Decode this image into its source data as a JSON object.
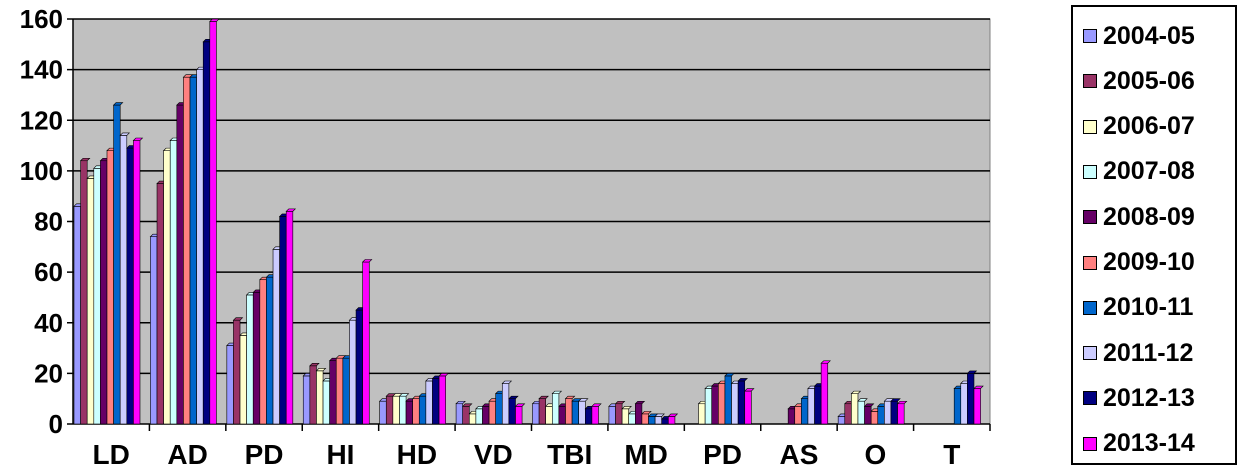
{
  "chart_data": {
    "type": "bar",
    "categories": [
      "LD",
      "AD",
      "PD",
      "HI",
      "HD",
      "VD",
      "TBI",
      "MD",
      "PD",
      "AS",
      "O",
      "T"
    ],
    "ylim": [
      0,
      160
    ],
    "y_ticks": [
      "0",
      "20",
      "40",
      "60",
      "80",
      "100",
      "120",
      "140",
      "160"
    ],
    "grid": true,
    "legend_position": "right",
    "series": [
      {
        "name": "2004-05",
        "color": "#9999ff",
        "values": [
          86,
          74,
          31,
          19,
          9,
          8,
          8,
          7,
          0,
          0,
          3,
          0
        ]
      },
      {
        "name": "2005-06",
        "color": "#993366",
        "values": [
          104,
          95,
          41,
          23,
          11,
          7,
          10,
          8,
          0,
          0,
          8,
          0
        ]
      },
      {
        "name": "2006-07",
        "color": "#ffffcc",
        "values": [
          97,
          108,
          35,
          21,
          11,
          4,
          7,
          6,
          8,
          0,
          12,
          0
        ]
      },
      {
        "name": "2007-08",
        "color": "#ccffff",
        "values": [
          101,
          112,
          51,
          17,
          11,
          6,
          12,
          4,
          14,
          0,
          9,
          0
        ]
      },
      {
        "name": "2008-09",
        "color": "#660066",
        "values": [
          104,
          126,
          52,
          25,
          9,
          7,
          7,
          8,
          15,
          6,
          7,
          0
        ]
      },
      {
        "name": "2009-10",
        "color": "#ff8080",
        "values": [
          108,
          137,
          57,
          26,
          10,
          9,
          10,
          4,
          16,
          7,
          5,
          0
        ]
      },
      {
        "name": "2010-11",
        "color": "#0066cc",
        "values": [
          126,
          137,
          58,
          26,
          11,
          12,
          9,
          3,
          19,
          10,
          7,
          14
        ]
      },
      {
        "name": "2011-12",
        "color": "#ccccff",
        "values": [
          114,
          140,
          69,
          41,
          17,
          16,
          9,
          3,
          16,
          14,
          9,
          16
        ]
      },
      {
        "name": "2012-13",
        "color": "#000080",
        "values": [
          109,
          151,
          82,
          45,
          18,
          10,
          6,
          2,
          17,
          15,
          9,
          20
        ]
      },
      {
        "name": "2013-14",
        "color": "#ff00ff",
        "values": [
          112,
          159,
          84,
          64,
          19,
          7,
          7,
          3,
          13,
          24,
          8,
          14
        ]
      }
    ]
  }
}
